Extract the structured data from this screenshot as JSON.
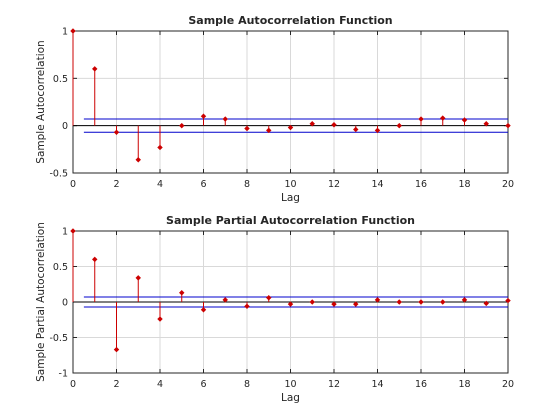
{
  "chart_data": [
    {
      "type": "stem",
      "title": "Sample Autocorrelation Function",
      "xlabel": "Lag",
      "ylabel": "Sample Autocorrelation",
      "xlim": [
        0,
        20
      ],
      "ylim": [
        -0.5,
        1
      ],
      "xticks": [
        0,
        2,
        4,
        6,
        8,
        10,
        12,
        14,
        16,
        18,
        20
      ],
      "yticks": [
        -0.5,
        0,
        0.5,
        1
      ],
      "grid": true,
      "confidence_bounds": [
        0.07,
        -0.07
      ],
      "colors": {
        "stem": "#cc0000",
        "bounds": "#0000cc"
      },
      "x": [
        0,
        1,
        2,
        3,
        4,
        5,
        6,
        7,
        8,
        9,
        10,
        11,
        12,
        13,
        14,
        15,
        16,
        17,
        18,
        19,
        20
      ],
      "values": [
        1.0,
        0.6,
        -0.07,
        -0.36,
        -0.23,
        0.0,
        0.1,
        0.07,
        -0.03,
        -0.05,
        -0.02,
        0.02,
        0.01,
        -0.04,
        -0.05,
        0.0,
        0.07,
        0.08,
        0.06,
        0.02,
        0.0
      ]
    },
    {
      "type": "stem",
      "title": "Sample Partial Autocorrelation Function",
      "xlabel": "Lag",
      "ylabel": "Sample Partial Autocorrelation",
      "xlim": [
        0,
        20
      ],
      "ylim": [
        -1,
        1
      ],
      "xticks": [
        0,
        2,
        4,
        6,
        8,
        10,
        12,
        14,
        16,
        18,
        20
      ],
      "yticks": [
        -1,
        -0.5,
        0,
        0.5,
        1
      ],
      "grid": true,
      "confidence_bounds": [
        0.07,
        -0.07
      ],
      "colors": {
        "stem": "#cc0000",
        "bounds": "#0000cc"
      },
      "x": [
        0,
        1,
        2,
        3,
        4,
        5,
        6,
        7,
        8,
        9,
        10,
        11,
        12,
        13,
        14,
        15,
        16,
        17,
        18,
        19,
        20
      ],
      "values": [
        1.0,
        0.6,
        -0.67,
        0.34,
        -0.24,
        0.13,
        -0.11,
        0.03,
        -0.06,
        0.06,
        -0.03,
        0.0,
        -0.03,
        -0.03,
        0.03,
        0.0,
        0.0,
        0.0,
        0.03,
        -0.02,
        0.02
      ]
    }
  ]
}
